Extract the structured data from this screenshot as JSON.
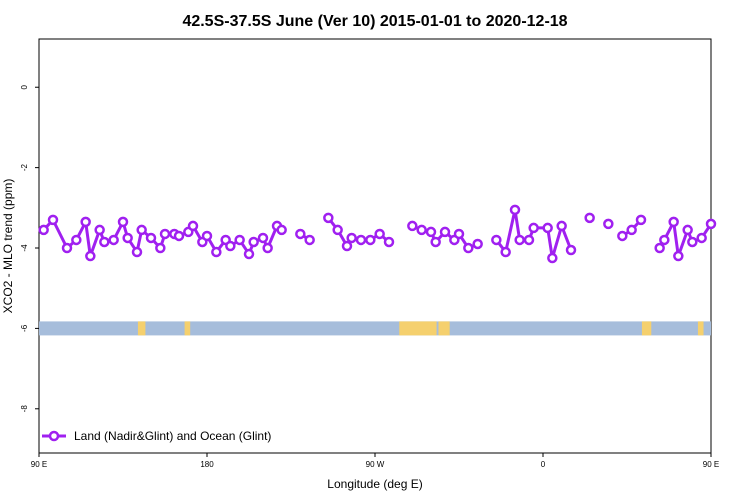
{
  "chart_data": {
    "type": "line",
    "title": "42.5S-37.5S June (Ver 10)   2015-01-01 to 2020-12-18",
    "xlabel": "Longitude (deg E)",
    "ylabel": "XCO2 - MLO trend (ppm)",
    "xlim": [
      90,
      450
    ],
    "ylim": [
      -9.1,
      1.2
    ],
    "x_ticks": [
      {
        "value": 90,
        "label": "90 E"
      },
      {
        "value": 180,
        "label": "180"
      },
      {
        "value": 270,
        "label": "90 W"
      },
      {
        "value": 360,
        "label": "0"
      },
      {
        "value": 450,
        "label": "90 E"
      },
      {
        "value": 540,
        "label": "180"
      }
    ],
    "y_ticks": [
      {
        "value": 0,
        "label": "0"
      },
      {
        "value": -2,
        "label": "-2"
      },
      {
        "value": -4,
        "label": "-4"
      },
      {
        "value": -6,
        "label": "-6"
      },
      {
        "value": -8,
        "label": "-8"
      }
    ],
    "legend": {
      "position": "bottom-left",
      "entries": [
        "Land (Nadir&Glint) and Ocean (Glint)"
      ]
    },
    "series": [
      {
        "name": "Land (Nadir&Glint) and Ocean (Glint)",
        "color": "#a020f0",
        "points": [
          [
            92.5,
            -3.55
          ],
          [
            97.5,
            -3.3
          ],
          [
            105,
            -4.0
          ],
          [
            110,
            -3.8
          ],
          [
            115,
            -3.35
          ],
          [
            117.5,
            -4.2
          ],
          [
            122.5,
            -3.55
          ],
          [
            125,
            -3.85
          ],
          [
            130,
            -3.8
          ],
          [
            135,
            -3.35
          ],
          [
            137.5,
            -3.75
          ],
          [
            142.5,
            -4.1
          ],
          [
            145,
            -3.55
          ],
          [
            150,
            -3.75
          ],
          [
            155,
            -4.0
          ],
          [
            157.5,
            -3.65
          ],
          [
            162.5,
            -3.65
          ],
          [
            165,
            -3.7
          ],
          [
            170,
            -3.6
          ],
          [
            172.5,
            -3.45
          ],
          [
            177.5,
            -3.85
          ],
          [
            180,
            -3.7
          ],
          [
            185,
            -4.1
          ],
          [
            190,
            -3.8
          ],
          [
            192.5,
            -3.95
          ],
          [
            197.5,
            -3.8
          ],
          [
            202.5,
            -4.15
          ],
          [
            205,
            -3.85
          ],
          [
            210,
            -3.75
          ],
          [
            212.5,
            -4.0
          ],
          [
            217.5,
            -3.45
          ],
          [
            220,
            -3.55
          ],
          [
            null,
            null
          ],
          [
            230,
            -3.65
          ],
          [
            235,
            -3.8
          ],
          [
            null,
            null
          ],
          [
            245,
            -3.25
          ],
          [
            250,
            -3.55
          ],
          [
            255,
            -3.95
          ],
          [
            257.5,
            -3.75
          ],
          [
            262.5,
            -3.8
          ],
          [
            267.5,
            -3.8
          ],
          [
            272.5,
            -3.65
          ],
          [
            277.5,
            -3.85
          ],
          [
            null,
            null
          ],
          [
            290,
            -3.45
          ],
          [
            295,
            -3.55
          ],
          [
            300,
            -3.6
          ],
          [
            302.5,
            -3.85
          ],
          [
            307.5,
            -3.6
          ],
          [
            312.5,
            -3.8
          ],
          [
            315,
            -3.65
          ],
          [
            320,
            -4.0
          ],
          [
            325,
            -3.9
          ],
          [
            null,
            null
          ],
          [
            335,
            -3.8
          ],
          [
            340,
            -4.1
          ],
          [
            345,
            -3.05
          ],
          [
            347.5,
            -3.8
          ],
          [
            352.5,
            -3.8
          ],
          [
            355,
            -3.5
          ],
          [
            362.5,
            -3.5
          ],
          [
            365,
            -4.25
          ],
          [
            370,
            -3.45
          ],
          [
            375,
            -4.05
          ],
          [
            null,
            null
          ],
          [
            385,
            -3.25
          ],
          [
            null,
            null
          ],
          [
            395,
            -3.4
          ],
          [
            null,
            null
          ],
          [
            402.5,
            -3.7
          ],
          [
            407.5,
            -3.55
          ],
          [
            412.5,
            -3.3
          ],
          [
            null,
            null
          ],
          [
            422.5,
            -4.0
          ],
          [
            425,
            -3.8
          ],
          [
            430,
            -3.35
          ],
          [
            432.5,
            -4.2
          ],
          [
            437.5,
            -3.55
          ],
          [
            440,
            -3.85
          ],
          [
            445,
            -3.75
          ],
          [
            450,
            -3.4
          ]
        ]
      }
    ],
    "band": {
      "y": -6.0,
      "ocean_color": "#a6bddb",
      "land_color": "#f5d06e",
      "land_segments": [
        [
          143,
          147
        ],
        [
          168,
          171
        ],
        [
          283,
          303
        ],
        [
          304,
          310
        ],
        [
          413,
          418
        ],
        [
          443,
          446
        ]
      ]
    }
  }
}
